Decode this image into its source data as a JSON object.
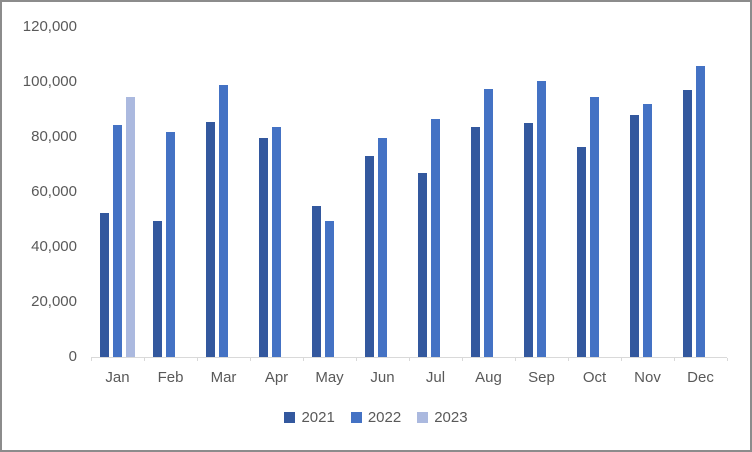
{
  "chart_data": {
    "type": "bar",
    "title": "",
    "xlabel": "",
    "ylabel": "",
    "categories": [
      "Jan",
      "Feb",
      "Mar",
      "Apr",
      "May",
      "Jun",
      "Jul",
      "Aug",
      "Sep",
      "Oct",
      "Nov",
      "Dec"
    ],
    "series": [
      {
        "name": "2021",
        "color": "#33589E",
        "values": [
          52500,
          49500,
          85500,
          79500,
          55000,
          73000,
          67000,
          83500,
          85000,
          76500,
          88000,
          97000
        ]
      },
      {
        "name": "2022",
        "color": "#4472C4",
        "values": [
          84500,
          82000,
          99000,
          83500,
          49500,
          79500,
          86500,
          97500,
          100500,
          94500,
          92000,
          106000
        ]
      },
      {
        "name": "2023",
        "color": "#ABB9DF",
        "values": [
          94500,
          null,
          null,
          null,
          null,
          null,
          null,
          null,
          null,
          null,
          null,
          null
        ]
      }
    ],
    "ylim": [
      0,
      120000
    ],
    "ytick_step": 20000,
    "ytick_labels": [
      "0",
      "20,000",
      "40,000",
      "60,000",
      "80,000",
      "100,000",
      "120,000"
    ],
    "grid": false,
    "legend_position": "bottom"
  },
  "colors": {
    "axis_text": "#595959",
    "axis_line": "#d9d9d9",
    "frame_border": "#8c8c8c",
    "background": "#ffffff"
  }
}
